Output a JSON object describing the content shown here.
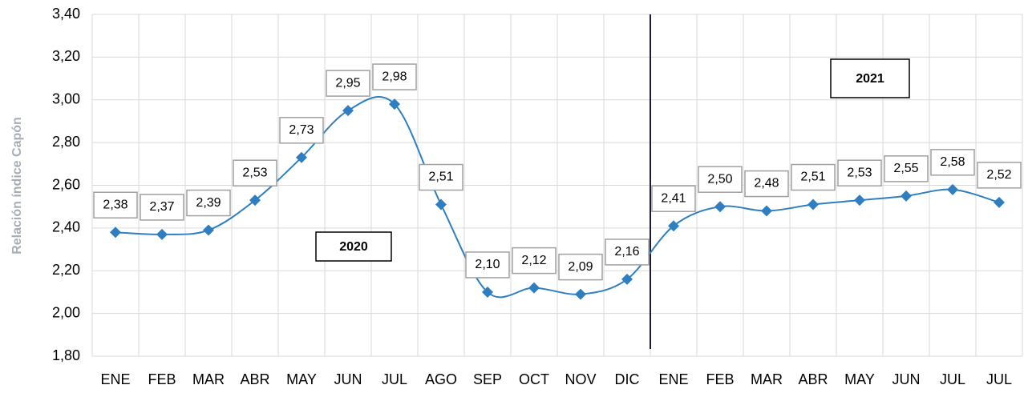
{
  "chart_data": {
    "type": "line",
    "y_label": "Relación índice Capón",
    "annotations": [
      "2020",
      "2021"
    ],
    "categories": [
      "ENE",
      "FEB",
      "MAR",
      "ABR",
      "MAY",
      "JUN",
      "JUL",
      "AGO",
      "SEP",
      "OCT",
      "NOV",
      "DIC",
      "ENE",
      "FEB",
      "MAR",
      "ABR",
      "MAY",
      "JUN",
      "JUL",
      "JUL"
    ],
    "series": [
      {
        "color": "#2f7fc0",
        "values": [
          2.38,
          2.37,
          2.39,
          2.53,
          2.73,
          2.95,
          2.98,
          2.51,
          2.1,
          2.12,
          2.09,
          2.16,
          2.41,
          2.5,
          2.48,
          2.51,
          2.53,
          2.55,
          2.58,
          2.52
        ],
        "value_labels": [
          "2,38",
          "2,37",
          "2,39",
          "2,53",
          "2,73",
          "2,95",
          "2,98",
          "2,51",
          "2,10",
          "2,12",
          "2,09",
          "2,16",
          "2,41",
          "2,50",
          "2,48",
          "2,51",
          "2,53",
          "2,55",
          "2,58",
          "2,52"
        ]
      }
    ],
    "ylim": [
      1.8,
      3.4
    ],
    "yticks": [
      {
        "value": 1.8,
        "label": "1,80"
      },
      {
        "value": 2.0,
        "label": "2,00"
      },
      {
        "value": 2.2,
        "label": "2,20"
      },
      {
        "value": 2.4,
        "label": "2,40"
      },
      {
        "value": 2.6,
        "label": "2,60"
      },
      {
        "value": 2.8,
        "label": "2,80"
      },
      {
        "value": 3.0,
        "label": "3,00"
      },
      {
        "value": 3.2,
        "label": "3,20"
      },
      {
        "value": 3.4,
        "label": "3,40"
      }
    ],
    "grid": true,
    "smooth": true
  }
}
